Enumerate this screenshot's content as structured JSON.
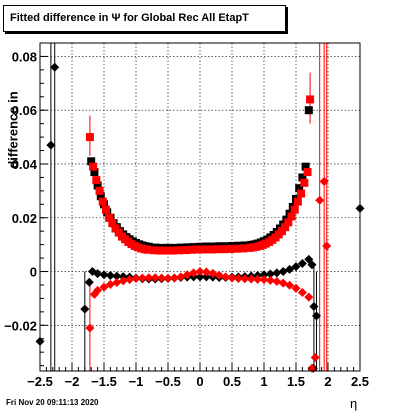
{
  "chart_data": {
    "type": "scatter",
    "title": "Fitted difference in  Ψ  for Global Rec All EtapT",
    "xlabel": "η",
    "ylabel": "difference in",
    "xlim": [
      -2.5,
      2.5
    ],
    "ylim": [
      -0.037,
      0.085
    ],
    "grid": true,
    "x_ticks": [
      "−2.5",
      "−2",
      "−1.5",
      "−1",
      "−0.5",
      "0",
      "0.5",
      "1",
      "1.5",
      "2",
      "2.5"
    ],
    "y_ticks": [
      "−0.02",
      "0",
      "0.02",
      "0.04",
      "0.06",
      "0.08"
    ],
    "x_tick_values": [
      -2.5,
      -2,
      -1.5,
      -1,
      -0.5,
      0,
      0.5,
      1,
      1.5,
      2,
      2.5
    ],
    "y_tick_values": [
      -0.02,
      0,
      0.02,
      0.04,
      0.06,
      0.08
    ],
    "colors": {
      "black": "#000000",
      "red": "#ff0000"
    },
    "series": [
      {
        "color": "#000000",
        "marker": "square",
        "points": [
          [
            -1.7,
            0.041
          ],
          [
            -1.65,
            0.037
          ],
          [
            -1.6,
            0.032
          ],
          [
            -1.55,
            0.028
          ],
          [
            -1.5,
            0.025
          ],
          [
            -1.45,
            0.022
          ],
          [
            -1.4,
            0.02
          ],
          [
            -1.35,
            0.018
          ],
          [
            -1.3,
            0.0165
          ],
          [
            -1.25,
            0.015
          ],
          [
            -1.2,
            0.0138
          ],
          [
            -1.15,
            0.0128
          ],
          [
            -1.1,
            0.012
          ],
          [
            -1.05,
            0.0112
          ],
          [
            -1.0,
            0.0106
          ],
          [
            -0.95,
            0.0101
          ],
          [
            -0.9,
            0.0097
          ],
          [
            -0.85,
            0.0094
          ],
          [
            -0.8,
            0.0092
          ],
          [
            -0.7,
            0.0089
          ],
          [
            -0.6,
            0.0088
          ],
          [
            -0.5,
            0.0088
          ],
          [
            -0.4,
            0.0088
          ],
          [
            -0.3,
            0.0089
          ],
          [
            -0.2,
            0.009
          ],
          [
            -0.1,
            0.0091
          ],
          [
            0.0,
            0.0092
          ],
          [
            0.1,
            0.0093
          ],
          [
            0.2,
            0.0093
          ],
          [
            0.3,
            0.0094
          ],
          [
            0.4,
            0.0094
          ],
          [
            0.5,
            0.0095
          ],
          [
            0.6,
            0.0096
          ],
          [
            0.7,
            0.0097
          ],
          [
            0.8,
            0.0099
          ],
          [
            0.85,
            0.0101
          ],
          [
            0.9,
            0.0104
          ],
          [
            0.95,
            0.0108
          ],
          [
            1.0,
            0.0113
          ],
          [
            1.05,
            0.0119
          ],
          [
            1.1,
            0.0127
          ],
          [
            1.15,
            0.0136
          ],
          [
            1.2,
            0.0147
          ],
          [
            1.25,
            0.016
          ],
          [
            1.3,
            0.0175
          ],
          [
            1.35,
            0.0193
          ],
          [
            1.4,
            0.0215
          ],
          [
            1.45,
            0.024
          ],
          [
            1.5,
            0.027
          ],
          [
            1.55,
            0.031
          ],
          [
            1.6,
            0.035
          ],
          [
            1.65,
            0.039
          ],
          [
            1.7,
            0.06
          ]
        ]
      },
      {
        "color": "#ff0000",
        "marker": "square",
        "points": [
          [
            -1.72,
            0.05
          ],
          [
            -1.67,
            0.039
          ],
          [
            -1.62,
            0.034
          ],
          [
            -1.57,
            0.03
          ],
          [
            -1.52,
            0.026
          ],
          [
            -1.47,
            0.023
          ],
          [
            -1.42,
            0.02
          ],
          [
            -1.37,
            0.018
          ],
          [
            -1.32,
            0.016
          ],
          [
            -1.27,
            0.0145
          ],
          [
            -1.22,
            0.013
          ],
          [
            -1.17,
            0.012
          ],
          [
            -1.12,
            0.011
          ],
          [
            -1.07,
            0.0102
          ],
          [
            -1.02,
            0.0095
          ],
          [
            -0.97,
            0.009
          ],
          [
            -0.92,
            0.0086
          ],
          [
            -0.87,
            0.0083
          ],
          [
            -0.82,
            0.0081
          ],
          [
            -0.72,
            0.0079
          ],
          [
            -0.62,
            0.0078
          ],
          [
            -0.52,
            0.0078
          ],
          [
            -0.42,
            0.0078
          ],
          [
            -0.32,
            0.0079
          ],
          [
            -0.22,
            0.008
          ],
          [
            -0.12,
            0.0081
          ],
          [
            -0.02,
            0.0082
          ],
          [
            0.08,
            0.0082
          ],
          [
            0.18,
            0.0082
          ],
          [
            0.28,
            0.0083
          ],
          [
            0.38,
            0.0083
          ],
          [
            0.48,
            0.0084
          ],
          [
            0.58,
            0.0085
          ],
          [
            0.68,
            0.0086
          ],
          [
            0.78,
            0.0088
          ],
          [
            0.83,
            0.009
          ],
          [
            0.88,
            0.0092
          ],
          [
            0.93,
            0.0095
          ],
          [
            0.98,
            0.0099
          ],
          [
            1.03,
            0.0104
          ],
          [
            1.08,
            0.011
          ],
          [
            1.13,
            0.0118
          ],
          [
            1.18,
            0.0127
          ],
          [
            1.23,
            0.0138
          ],
          [
            1.28,
            0.015
          ],
          [
            1.33,
            0.0165
          ],
          [
            1.38,
            0.0183
          ],
          [
            1.43,
            0.0205
          ],
          [
            1.48,
            0.023
          ],
          [
            1.53,
            0.026
          ],
          [
            1.58,
            0.029
          ],
          [
            1.63,
            0.033
          ],
          [
            1.68,
            0.037
          ],
          [
            1.72,
            0.064
          ]
        ]
      },
      {
        "color": "#000000",
        "marker": "circle",
        "points": [
          [
            -2.5,
            -0.026
          ],
          [
            -2.33,
            0.047
          ],
          [
            -2.27,
            0.076
          ],
          [
            -1.8,
            -0.014
          ],
          [
            -1.73,
            -0.004
          ],
          [
            -1.68,
            0.0
          ],
          [
            -1.6,
            -0.0008
          ],
          [
            -1.5,
            -0.0012
          ],
          [
            -1.4,
            -0.0015
          ],
          [
            -1.3,
            -0.0017
          ],
          [
            -1.2,
            -0.0019
          ],
          [
            -1.1,
            -0.0021
          ],
          [
            -1.0,
            -0.0024
          ],
          [
            -0.9,
            -0.0027
          ],
          [
            -0.8,
            -0.0028
          ],
          [
            -0.7,
            -0.0028
          ],
          [
            -0.6,
            -0.0027
          ],
          [
            -0.5,
            -0.0026
          ],
          [
            -0.4,
            -0.0024
          ],
          [
            -0.3,
            -0.0022
          ],
          [
            -0.2,
            -0.0021
          ],
          [
            -0.1,
            -0.002
          ],
          [
            0.0,
            -0.002
          ],
          [
            0.1,
            -0.002
          ],
          [
            0.2,
            -0.0021
          ],
          [
            0.3,
            -0.0022
          ],
          [
            0.4,
            -0.0022
          ],
          [
            0.5,
            -0.0021
          ],
          [
            0.6,
            -0.002
          ],
          [
            0.7,
            -0.0019
          ],
          [
            0.8,
            -0.0017
          ],
          [
            0.9,
            -0.0015
          ],
          [
            1.0,
            -0.0012
          ],
          [
            1.1,
            -0.0009
          ],
          [
            1.2,
            -0.0005
          ],
          [
            1.3,
            0.0
          ],
          [
            1.4,
            0.0008
          ],
          [
            1.5,
            0.0018
          ],
          [
            1.6,
            0.003
          ],
          [
            1.7,
            0.0045
          ],
          [
            1.75,
            0.0025
          ],
          [
            1.78,
            -0.013
          ],
          [
            1.82,
            -0.0165
          ],
          [
            1.77,
            -0.036
          ],
          [
            2.5,
            0.0235
          ]
        ]
      },
      {
        "color": "#ff0000",
        "marker": "circle",
        "points": [
          [
            -1.72,
            -0.021
          ],
          [
            -1.65,
            -0.0085
          ],
          [
            -1.6,
            -0.007
          ],
          [
            -1.5,
            -0.0058
          ],
          [
            -1.4,
            -0.0048
          ],
          [
            -1.3,
            -0.0041
          ],
          [
            -1.2,
            -0.0035
          ],
          [
            -1.1,
            -0.003
          ],
          [
            -1.0,
            -0.0026
          ],
          [
            -0.9,
            -0.0024
          ],
          [
            -0.8,
            -0.0023
          ],
          [
            -0.7,
            -0.0023
          ],
          [
            -0.6,
            -0.0024
          ],
          [
            -0.5,
            -0.0025
          ],
          [
            -0.4,
            -0.0024
          ],
          [
            -0.3,
            -0.002
          ],
          [
            -0.2,
            -0.0012
          ],
          [
            -0.1,
            -0.0005
          ],
          [
            0.0,
            0.0
          ],
          [
            0.1,
            -0.0002
          ],
          [
            0.2,
            -0.0007
          ],
          [
            0.3,
            -0.0014
          ],
          [
            0.4,
            -0.002
          ],
          [
            0.5,
            -0.0024
          ],
          [
            0.6,
            -0.0026
          ],
          [
            0.7,
            -0.0027
          ],
          [
            0.8,
            -0.0028
          ],
          [
            0.9,
            -0.0029
          ],
          [
            1.0,
            -0.003
          ],
          [
            1.1,
            -0.0033
          ],
          [
            1.2,
            -0.0037
          ],
          [
            1.3,
            -0.0043
          ],
          [
            1.4,
            -0.0051
          ],
          [
            1.5,
            -0.0062
          ],
          [
            1.6,
            -0.0078
          ],
          [
            1.7,
            -0.0095
          ],
          [
            1.75,
            -0.036
          ],
          [
            1.8,
            -0.032
          ],
          [
            1.87,
            0.0265
          ],
          [
            1.94,
            0.0335
          ],
          [
            1.98,
            0.0095
          ]
        ]
      }
    ]
  },
  "footer_timestamp": "Fri Nov 20 09:11:13 2020"
}
